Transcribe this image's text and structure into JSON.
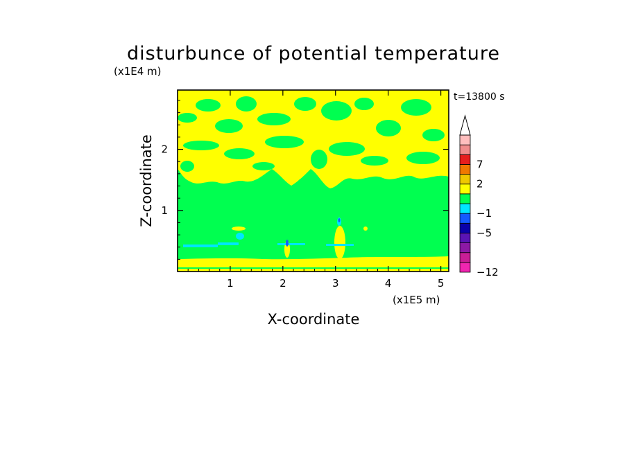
{
  "chart_data": {
    "type": "heatmap",
    "title": "disturbunce of potential temperature",
    "time_label": "t=13800 s",
    "xlabel": "X-coordinate",
    "ylabel": "Z-coordinate",
    "x_unit": "(x1E5 m)",
    "y_unit": "(x1E4 m)",
    "xlim": [
      0,
      5.15
    ],
    "ylim": [
      0,
      2.97
    ],
    "x_ticks": [
      1,
      2,
      3,
      4,
      5
    ],
    "y_ticks": [
      1,
      2
    ],
    "x_tick_labels": [
      "1",
      "2",
      "3",
      "4",
      "5"
    ],
    "y_tick_labels": [
      "1",
      "2"
    ],
    "colorbar": {
      "levels": [
        -12,
        -10,
        -8,
        -6,
        -5,
        -3,
        -1,
        0,
        1,
        2,
        4,
        7,
        10,
        13
      ],
      "colors": [
        "#f026b0",
        "#c81e96",
        "#8c19a5",
        "#5a14b4",
        "#0a00aa",
        "#145aff",
        "#00e6ff",
        "#00ff50",
        "#ffff00",
        "#f0c800",
        "#f07800",
        "#e61e1e",
        "#f08c8c",
        "#ffbebe"
      ],
      "tick_labels": [
        "7",
        "2",
        "-1",
        "-5",
        "-12"
      ],
      "extend": "max"
    },
    "field_description_colors": {
      "background_band": "#00ff50",
      "upper_layer": "#ffff00",
      "surface_layer": "#ffff00",
      "cold_spots": "#00e6ff"
    }
  }
}
